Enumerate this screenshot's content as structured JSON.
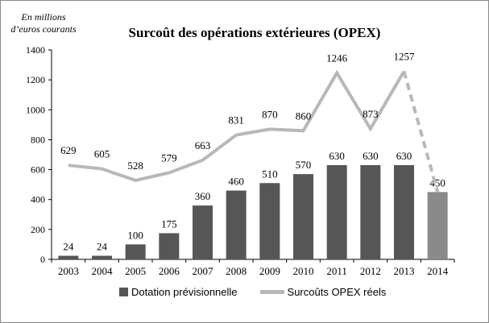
{
  "unit_note": "En millions d’euros courants",
  "chart_data": {
    "type": "bar",
    "title": "Surcoût des opérations extérieures (OPEX)",
    "categories": [
      "2003",
      "2004",
      "2005",
      "2006",
      "2007",
      "2008",
      "2009",
      "2010",
      "2011",
      "2012",
      "2013",
      "2014"
    ],
    "ylim": [
      0,
      1400
    ],
    "yticks": [
      0,
      200,
      400,
      600,
      800,
      1000,
      1200,
      1400
    ],
    "series": [
      {
        "name": "Dotation prévisionnelle",
        "kind": "bar",
        "values": [
          24,
          24,
          100,
          175,
          360,
          460,
          510,
          570,
          630,
          630,
          630,
          450
        ],
        "color": "#565656",
        "highlight_last_color": "#8a8a8a"
      },
      {
        "name": "Surcoûts OPEX réels",
        "kind": "line",
        "values": [
          629,
          605,
          528,
          579,
          663,
          831,
          870,
          860,
          1246,
          873,
          1257,
          null
        ],
        "color": "#b8b8b8",
        "dashed_segment_to": 450
      }
    ],
    "legend_position": "bottom",
    "grid": false
  }
}
